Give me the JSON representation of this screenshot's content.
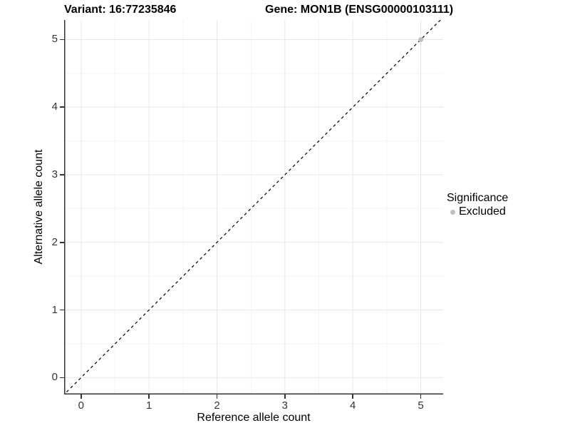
{
  "chart_data": {
    "type": "scatter",
    "title_left": "Variant: 16:77235846",
    "title_right": "Gene: MON1B (ENSG00000103111)",
    "xlabel": "Reference allele count",
    "ylabel": "Alternative allele count",
    "xlim": [
      -0.25,
      5.33
    ],
    "ylim": [
      -0.25,
      5.29
    ],
    "x_ticks": [
      "0",
      "1",
      "2",
      "3",
      "4",
      "5"
    ],
    "y_ticks": [
      "0",
      "1",
      "2",
      "3",
      "4",
      "5"
    ],
    "x_tick_values": [
      0,
      1,
      2,
      3,
      4,
      5
    ],
    "y_tick_values": [
      0,
      1,
      2,
      3,
      4,
      5
    ],
    "x_minor": [
      0.5,
      1.5,
      2.5,
      3.5,
      4.5
    ],
    "y_minor": [
      0.5,
      1.5,
      2.5,
      3.5,
      4.5
    ],
    "grid": "major+minor",
    "series": [
      {
        "name": "Excluded",
        "color": "#bfbfbf",
        "marker_radius": 3.5,
        "points": [
          [
            5,
            5
          ]
        ]
      }
    ],
    "reference_line": {
      "slope": 1,
      "intercept": 0,
      "style": "dashed",
      "color": "#000000"
    },
    "legend": {
      "title": "Significance",
      "position": "right",
      "entries": [
        {
          "label": "Excluded",
          "color": "#bfbfbf"
        }
      ]
    },
    "colors": {
      "grid_major": "#e8e8e8",
      "grid_minor": "#f4f4f4",
      "axis": "#333333",
      "tick_text": "#333333"
    }
  }
}
